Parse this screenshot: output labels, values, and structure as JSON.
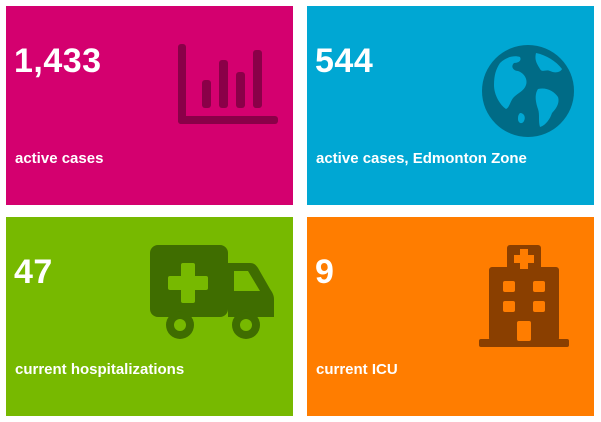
{
  "tiles": [
    {
      "value": "1,433",
      "label": "active cases",
      "icon": "bar-chart-icon",
      "bg": "#d4006f",
      "icon_color": "#8a0048"
    },
    {
      "value": "544",
      "label": "active cases, Edmonton Zone",
      "icon": "globe-icon",
      "bg": "#00a7d3",
      "icon_color": "#006b86"
    },
    {
      "value": "47",
      "label": "current hospitalizations",
      "icon": "ambulance-icon",
      "bg": "#77b900",
      "icon_color": "#3f6d00"
    },
    {
      "value": "9",
      "label": "current ICU",
      "icon": "hospital-icon",
      "bg": "#ff7d00",
      "icon_color": "#8a3f00"
    }
  ]
}
